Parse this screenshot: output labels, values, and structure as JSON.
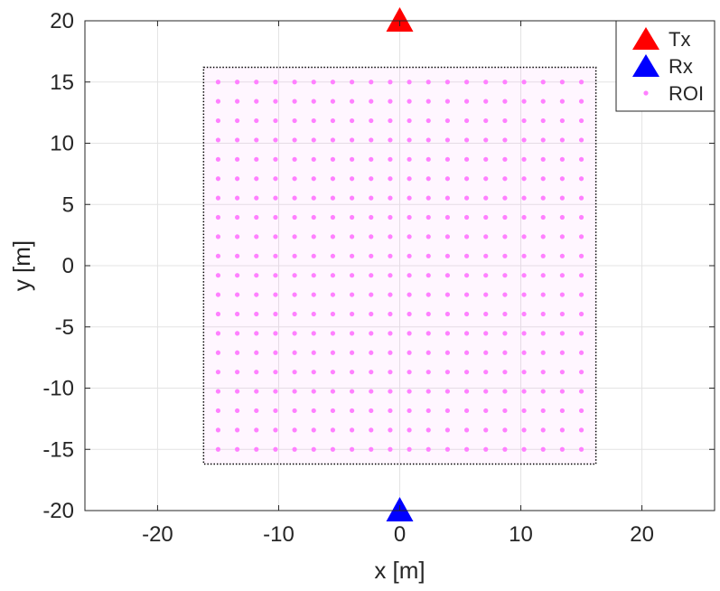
{
  "chart_data": {
    "type": "scatter",
    "xlabel": "x [m]",
    "ylabel": "y [m]",
    "xlim": [
      -26,
      26
    ],
    "ylim": [
      -20,
      20
    ],
    "x_ticks": [
      -20,
      -10,
      0,
      10,
      20
    ],
    "y_ticks": [
      -20,
      -15,
      -10,
      -5,
      0,
      5,
      10,
      15,
      20
    ],
    "x_tick_labels": [
      "-20",
      "-10",
      "0",
      "10",
      "20"
    ],
    "y_tick_labels": [
      "-20",
      "-15",
      "-10",
      "-5",
      "0",
      "5",
      "10",
      "15",
      "20"
    ],
    "grid": true,
    "legend_position": "top-right",
    "roi_region": {
      "x": [
        -16.2,
        16.2
      ],
      "y": [
        -16.2,
        16.2
      ]
    },
    "series": [
      {
        "name": "Tx",
        "marker": "triangle",
        "color": "#ff0000",
        "points": [
          [
            0,
            20
          ]
        ]
      },
      {
        "name": "Rx",
        "marker": "triangle",
        "color": "#0000ff",
        "points": [
          [
            0,
            -20
          ]
        ]
      },
      {
        "name": "ROI",
        "marker": "dot",
        "color": "#ff80ff",
        "grid_points": {
          "x_start": -15,
          "x_end": 15,
          "y_start": -15,
          "y_end": 15,
          "count_x": 20,
          "count_y": 20
        }
      }
    ],
    "legend": [
      "Tx",
      "Rx",
      "ROI"
    ]
  }
}
